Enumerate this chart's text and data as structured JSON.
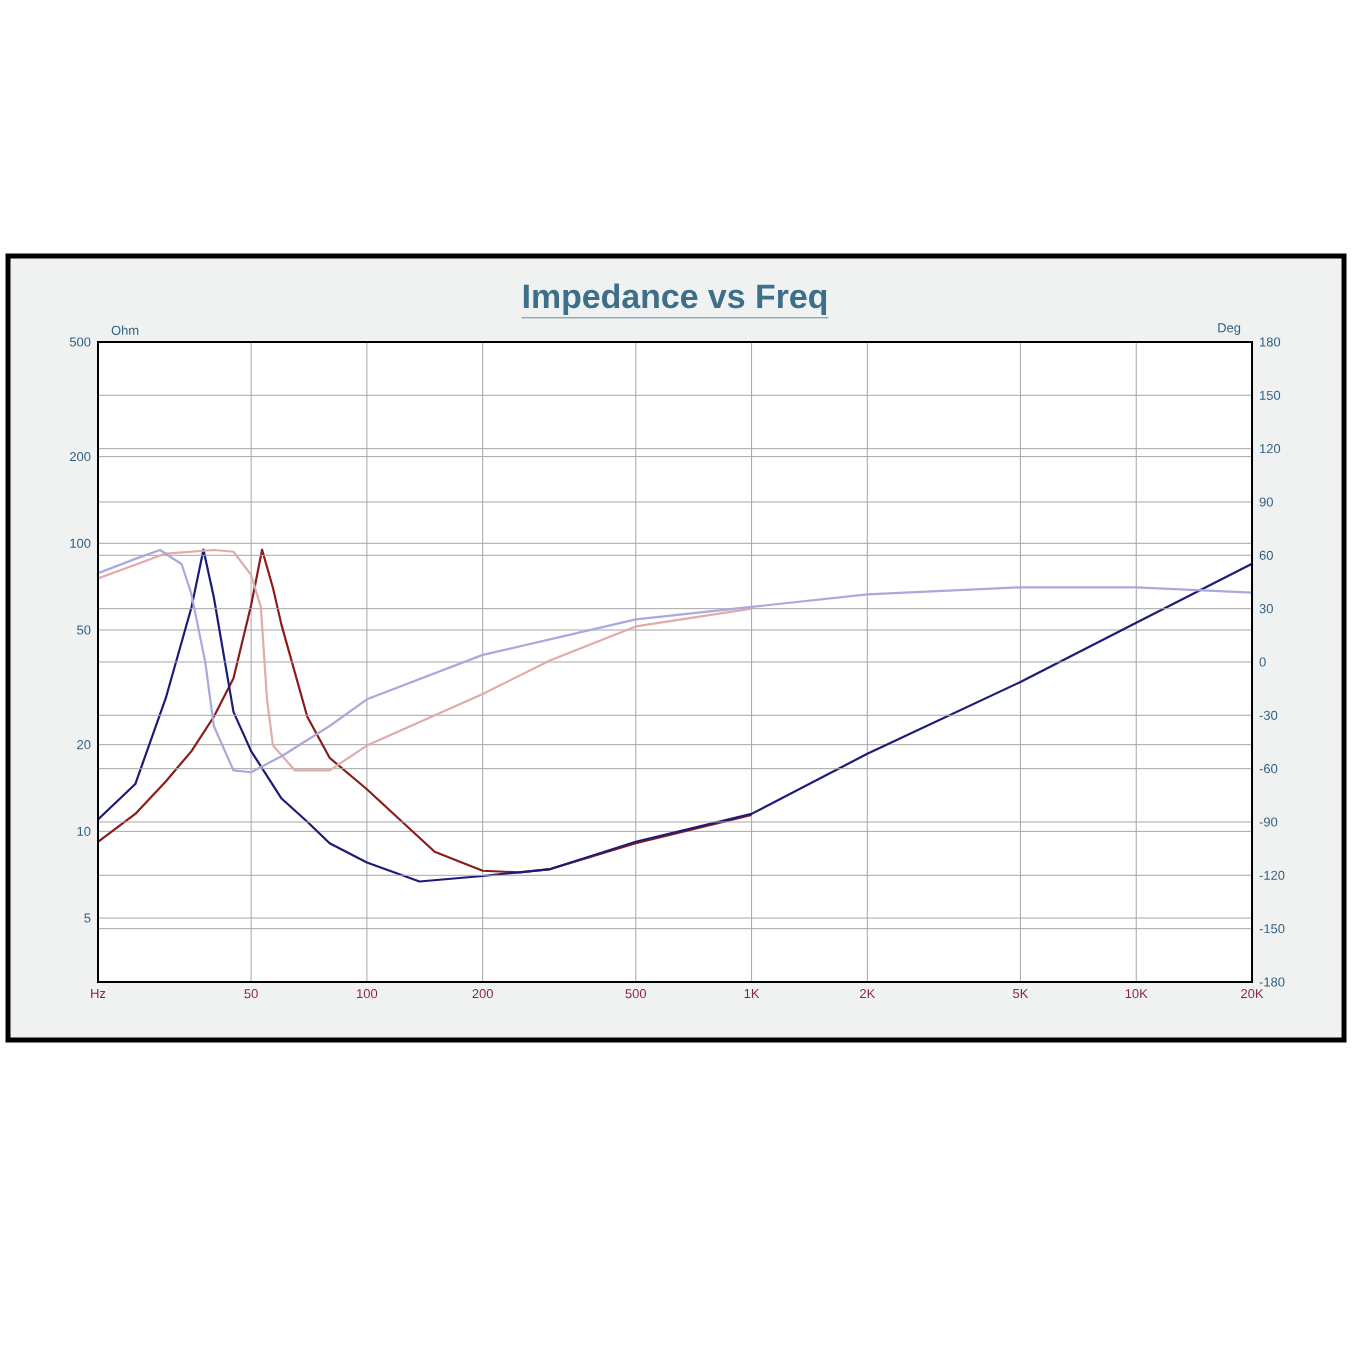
{
  "chart_data": {
    "type": "line",
    "title": "Impedance vs Freq",
    "ylabel": "Ohm",
    "y2label": "Deg",
    "log": "xy",
    "grid": true,
    "xlim": [
      20,
      20000
    ],
    "xticks": [
      {
        "value": 20,
        "label": "Hz"
      },
      50,
      100,
      200,
      500,
      {
        "value": 1000,
        "label": "1K"
      },
      {
        "value": 2000,
        "label": "2K"
      },
      {
        "value": 5000,
        "label": "5K"
      },
      {
        "value": 10000,
        "label": "10K"
      },
      {
        "value": 20000,
        "label": "20K"
      }
    ],
    "ylim": [
      3,
      500
    ],
    "yticks": [
      5,
      10,
      20,
      50,
      100,
      200,
      500
    ],
    "y2lim": [
      -180,
      180
    ],
    "y2ticks": [
      -180,
      -150,
      -120,
      -90,
      -60,
      -30,
      0,
      30,
      60,
      90,
      120,
      150,
      180
    ],
    "series": [
      {
        "color": "#8a1c1c",
        "axis": "y",
        "x": [
          20,
          25,
          30,
          35,
          40,
          45,
          50,
          53.4,
          57,
          60,
          70,
          80,
          100,
          150,
          200,
          250,
          300,
          500,
          1000
        ],
        "values": [
          9.2,
          11.5,
          14.9,
          19,
          25,
          34,
          61,
          95,
          70,
          52,
          25,
          18,
          14,
          8.5,
          7.3,
          7.2,
          7.4,
          9.1,
          11.4
        ]
      },
      {
        "color": "#1c1c78",
        "axis": "y",
        "x": [
          20,
          25,
          30,
          35,
          37.6,
          40,
          45,
          50,
          60,
          70,
          80,
          100,
          137,
          200,
          300,
          500,
          1000,
          2000,
          5000,
          10000,
          20000
        ],
        "values": [
          11,
          14.6,
          29,
          60,
          95,
          65,
          26,
          19,
          13,
          10.8,
          9.1,
          7.8,
          6.7,
          7,
          7.4,
          9.2,
          11.5,
          18.6,
          33,
          53,
          85
        ]
      },
      {
        "color": "#e0abab",
        "axis": "y2",
        "x": [
          20,
          30,
          40,
          45,
          50,
          53,
          55,
          57,
          65,
          80,
          100,
          200,
          300,
          500,
          1000
        ],
        "values": [
          47,
          61,
          63,
          62,
          49,
          31,
          -21,
          -47,
          -61,
          -61,
          -47,
          -18,
          1,
          20,
          30
        ]
      },
      {
        "color": "#a9a9dc",
        "axis": "y2",
        "x": [
          20,
          25,
          29,
          33,
          35,
          38,
          40,
          45,
          50,
          60,
          80,
          100,
          200,
          500,
          1000,
          2000,
          5000,
          10000,
          20000
        ],
        "values": [
          50,
          58,
          63,
          55,
          38,
          0,
          -36,
          -61,
          -62,
          -53,
          -36,
          -21,
          4,
          24,
          31,
          38,
          42,
          42,
          39
        ]
      }
    ]
  }
}
